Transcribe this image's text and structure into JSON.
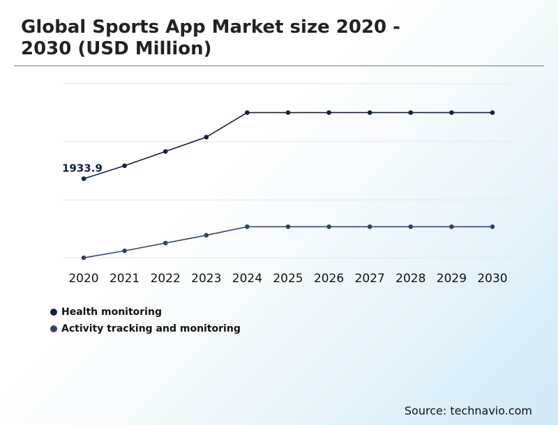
{
  "title": "Global Sports App Market size 2020 - 2030 (USD Million)",
  "source": "Source: technavio.com",
  "chart_data": {
    "type": "line",
    "x": [
      "2020",
      "2021",
      "2022",
      "2023",
      "2024",
      "2025",
      "2026",
      "2027",
      "2028",
      "2029",
      "2030"
    ],
    "ylim": [
      0,
      4600
    ],
    "grid": true,
    "legend_position": "bottom-left",
    "series": [
      {
        "name": "Health monitoring",
        "color": "#0f1f45",
        "values": [
          1933.9,
          2250,
          2600,
          2950,
          3550,
          3550,
          3550,
          3550,
          3550,
          3550,
          3550
        ]
      },
      {
        "name": "Activity tracking and monitoring",
        "color": "#2e4272",
        "values": [
          0,
          170,
          360,
          550,
          760,
          760,
          760,
          760,
          760,
          760,
          760
        ]
      }
    ],
    "annotations": [
      {
        "series": 0,
        "index": 0,
        "text": "1933.9"
      }
    ]
  }
}
